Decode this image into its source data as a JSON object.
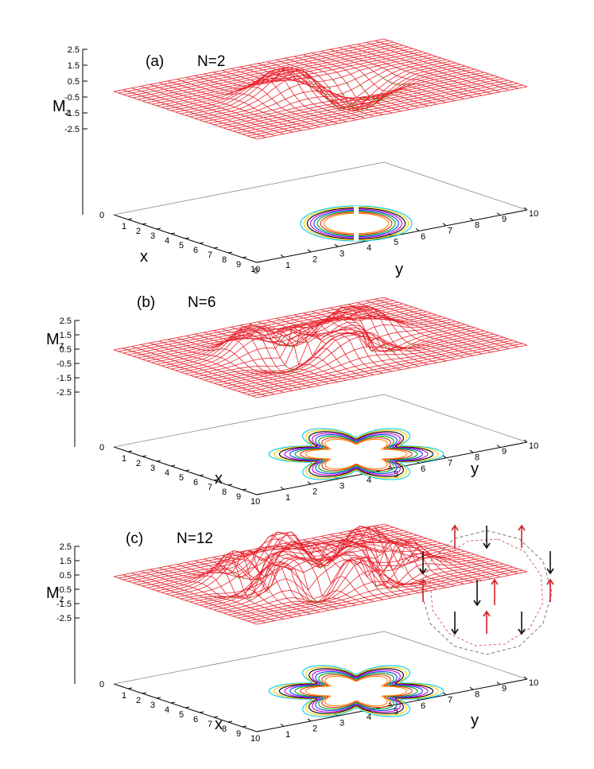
{
  "chart_data": [
    {
      "type": "surface",
      "panel_label": "(a)",
      "title": "N=2",
      "zlabel": "M",
      "zlabel_sub": "z",
      "xlabel": "x",
      "ylabel": "y",
      "z_ticks": [
        "2.5",
        "1.5",
        "0.5",
        "-0.5",
        "-1.5",
        "-2.5"
      ],
      "x_ticks": [
        "0",
        "1",
        "2",
        "3",
        "4",
        "5",
        "6",
        "7",
        "8",
        "9",
        "10"
      ],
      "y_ticks": [
        "0",
        "1",
        "2",
        "3",
        "4",
        "5",
        "6",
        "7",
        "8",
        "9",
        "10"
      ],
      "x_range": [
        0,
        10
      ],
      "y_range": [
        0,
        10
      ],
      "z_range": [
        -2.5,
        2.5
      ],
      "bumps": [
        {
          "x": 5,
          "y": 3.8,
          "height": 2.5
        },
        {
          "x": 5,
          "y": 6.2,
          "height": -2.5
        }
      ],
      "contour_lobes": 2,
      "colors": {
        "surface_positive": "#e8202a",
        "surface_negative": "#22cc22"
      }
    },
    {
      "type": "surface",
      "panel_label": "(b)",
      "title": "N=6",
      "zlabel": "M",
      "zlabel_sub": "z",
      "xlabel": "x",
      "ylabel": "y",
      "z_ticks": [
        "2.5",
        "1.5",
        "0.5",
        "-0.5",
        "-1.5",
        "-2.5"
      ],
      "x_ticks": [
        "0",
        "1",
        "2",
        "3",
        "4",
        "5",
        "6",
        "7",
        "8",
        "9",
        "10"
      ],
      "y_ticks": [
        "1",
        "2",
        "3",
        "4",
        "5",
        "6",
        "7",
        "8",
        "9",
        "10"
      ],
      "x_range": [
        0,
        10
      ],
      "y_range": [
        0,
        10
      ],
      "z_range": [
        -2.5,
        2.5
      ],
      "lobes": 6,
      "lobe_radius": 2.2,
      "lobe_height": 2.5,
      "contour_lobes": 6,
      "colors": {
        "surface_positive": "#e8202a",
        "surface_negative": "#22cc22"
      }
    },
    {
      "type": "surface",
      "panel_label": "(c)",
      "title": "N=12",
      "zlabel": "M",
      "zlabel_sub": "z",
      "xlabel": "x",
      "ylabel": "y",
      "z_ticks": [
        "2.5",
        "1.5",
        "0.5",
        "-0.5",
        "-1.5",
        "-2.5"
      ],
      "x_ticks": [
        "0",
        "1",
        "2",
        "3",
        "4",
        "5",
        "6",
        "7",
        "8",
        "9",
        "10"
      ],
      "y_ticks": [
        "1",
        "2",
        "3",
        "4",
        "5",
        "6",
        "7",
        "8",
        "9",
        "10"
      ],
      "x_range": [
        0,
        10
      ],
      "y_range": [
        0,
        10
      ],
      "z_range": [
        -2.5,
        2.5
      ],
      "lobes": 12,
      "lobe_radius": 2.6,
      "lobe_height": 2.5,
      "contour_lobes": 6,
      "inset": {
        "type": "spin-ring",
        "sites": 12,
        "spins": [
          "up",
          "down",
          "up",
          "down",
          "up",
          "down",
          "up",
          "down",
          "up",
          "down",
          "up",
          "down"
        ],
        "center_spins": [
          "down",
          "up"
        ],
        "colors": {
          "up": "#d42020",
          "down": "#111111"
        }
      },
      "colors": {
        "surface_positive": "#e8202a",
        "surface_negative": "#22cc22"
      }
    }
  ]
}
